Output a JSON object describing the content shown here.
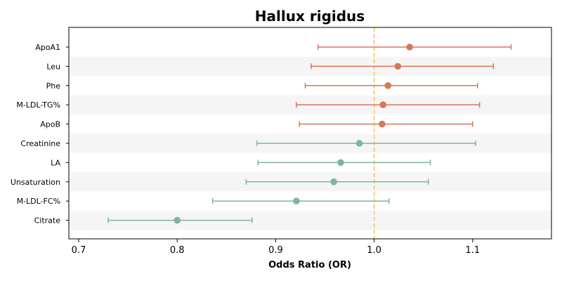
{
  "chart_data": {
    "type": "forest",
    "title": "Hallux rigidus",
    "xlabel": "Odds Ratio (OR)",
    "ylabel": "",
    "xlim": [
      0.69,
      1.18
    ],
    "xticks": [
      0.7,
      0.8,
      0.9,
      1.0,
      1.1
    ],
    "xtick_labels": [
      "0.7",
      "0.8",
      "0.9",
      "1.0",
      "1.1"
    ],
    "reference_line": 1.0,
    "reference_color": "#f5c26b",
    "band_color": "#f5f5f5",
    "grid": false,
    "rows": [
      {
        "label": "ApoA1",
        "or": 1.036,
        "lower": 0.943,
        "upper": 1.139,
        "color": "#d9765a"
      },
      {
        "label": "Leu",
        "or": 1.024,
        "lower": 0.936,
        "upper": 1.121,
        "color": "#d9765a"
      },
      {
        "label": "Phe",
        "or": 1.014,
        "lower": 0.93,
        "upper": 1.105,
        "color": "#d9765a"
      },
      {
        "label": "M-LDL-TG%",
        "or": 1.009,
        "lower": 0.921,
        "upper": 1.107,
        "color": "#d9765a"
      },
      {
        "label": "ApoB",
        "or": 1.008,
        "lower": 0.924,
        "upper": 1.1,
        "color": "#d9765a"
      },
      {
        "label": "Creatinine",
        "or": 0.985,
        "lower": 0.881,
        "upper": 1.103,
        "color": "#7fb59a"
      },
      {
        "label": "LA",
        "or": 0.966,
        "lower": 0.882,
        "upper": 1.057,
        "color": "#7fb59a"
      },
      {
        "label": "Unsaturation",
        "or": 0.959,
        "lower": 0.87,
        "upper": 1.055,
        "color": "#7fb59a"
      },
      {
        "label": "M-LDL-FC%",
        "or": 0.921,
        "lower": 0.836,
        "upper": 1.015,
        "color": "#7fb59a"
      },
      {
        "label": "Citrate",
        "or": 0.8,
        "lower": 0.73,
        "upper": 0.876,
        "color": "#7fb59a"
      }
    ]
  }
}
